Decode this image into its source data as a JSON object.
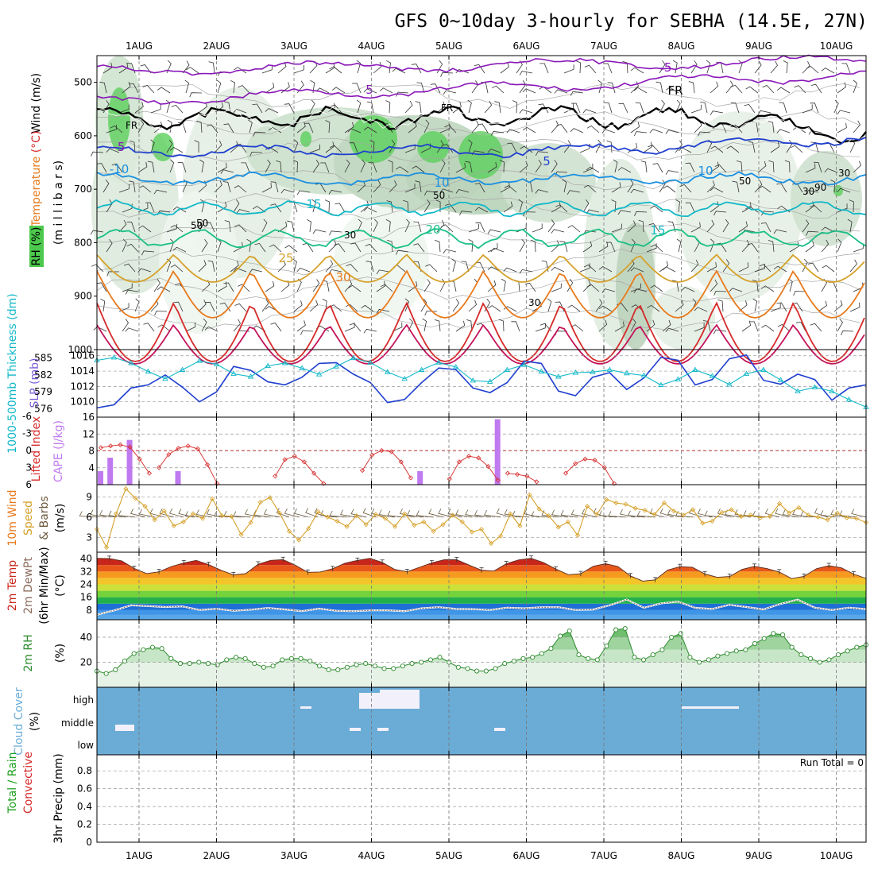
{
  "title": "GFS 0~10day 3-hourly for SEBHA (14.5E, 27N)",
  "dates": [
    "1AUG",
    "2AUG",
    "3AUG",
    "4AUG",
    "5AUG",
    "6AUG",
    "7AUG",
    "8AUG",
    "9AUG",
    "10AUG"
  ],
  "colors": {
    "purple": "#8a17b8",
    "blue": "#1f3fcf",
    "skyblue": "#1a8fe0",
    "teal": "#11b8c8",
    "green": "#1abf86",
    "gold": "#d6a12a",
    "orange": "#e87a1c",
    "red": "#d62a2a",
    "crimson": "#c4135a",
    "rhGreen": "#4cc94c",
    "cloudBlue": "#6aacd6"
  },
  "chart_data": [
    {
      "type": "contour",
      "panel": "upper-air",
      "ylabel": "milliibars",
      "ylabel_parts": {
        "wind": "Wind (m/s)",
        "temp": "Temperature (°C)",
        "rh": "RH (%)"
      },
      "ylabel_axis": "(m i l l i b a r s)",
      "yticks": [
        500,
        600,
        700,
        800,
        900,
        1000
      ],
      "ylim": [
        1000,
        450
      ],
      "contour_labels": [
        {
          "text": "5",
          "color": "purple"
        },
        {
          "text": "-5",
          "color": "purple"
        },
        {
          "text": "FR",
          "color": "black"
        },
        {
          "text": "-5",
          "color": "blue"
        },
        {
          "text": "-10",
          "color": "skyblue"
        },
        {
          "text": "10",
          "color": "skyblue"
        },
        {
          "text": "15",
          "color": "teal"
        },
        {
          "text": "20",
          "color": "green"
        },
        {
          "text": "25",
          "color": "gold"
        },
        {
          "text": "30",
          "color": "orange"
        }
      ],
      "rh_labels": [
        "50",
        "30",
        "50",
        "30",
        "50",
        "90",
        "30",
        "50",
        "30"
      ]
    },
    {
      "type": "line",
      "panel": "slp-thickness",
      "ylabel_left": "1000-500mb Thickness (dm)",
      "ylabel_right": "SLP (mb)",
      "yticks_left": [
        576,
        579,
        582,
        585
      ],
      "yticks_right": [
        1010,
        1012,
        1014,
        1016
      ],
      "series": [
        {
          "name": "SLP (mb)",
          "color": "blue",
          "values": [
            1009.2,
            1009.6,
            1011.8,
            1012.2,
            1013.5,
            1011.9,
            1010.0,
            1011.3,
            1014.6,
            1014.1,
            1012.6,
            1012.2,
            1013.2,
            1015.0,
            1015.1,
            1013.6,
            1012.5,
            1009.9,
            1010.3,
            1012.5,
            1014.4,
            1014.2,
            1011.8,
            1011.2,
            1012.5,
            1015.3,
            1015.0,
            1011.4,
            1010.8,
            1013.2,
            1013.8,
            1011.6,
            1013.1,
            1015.8,
            1015.4,
            1012.2,
            1012.9,
            1015.6,
            1016.1,
            1012.8,
            1012.3,
            1013.6,
            1012.9,
            1010.2,
            1011.8,
            1012.2
          ]
        },
        {
          "name": "1000-500mb Thickness (dm)",
          "color": "teal",
          "values": [
            584.6,
            585.1,
            584.1,
            582.6,
            581.3,
            582.9,
            584.5,
            583.9,
            582.2,
            581.7,
            583.6,
            584.1,
            583.2,
            582.1,
            583.5,
            585.0,
            584.2,
            582.5,
            581.3,
            582.9,
            584.2,
            583.4,
            581.0,
            580.8,
            582.9,
            583.8,
            582.6,
            581.7,
            582.4,
            582.5,
            582.9,
            582.3,
            581.9,
            580.2,
            581.2,
            582.9,
            581.8,
            580.3,
            582.2,
            582.9,
            581.1,
            579.1,
            579.8,
            579.1,
            577.6,
            576.3
          ]
        }
      ]
    },
    {
      "type": "bar",
      "panel": "instability",
      "ylabel_left": "Lifted Index",
      "ylabel_right": "CAPE (J/kg)",
      "yticks_left": [
        -6,
        -3,
        0,
        3,
        6
      ],
      "yticks_right": [
        4,
        8,
        12,
        16
      ],
      "cape_bars": [
        {
          "step": 0,
          "value": 3.2
        },
        {
          "step": 1,
          "value": 6.4
        },
        {
          "step": 3,
          "value": 10.6
        },
        {
          "step": 8,
          "value": 3.2
        },
        {
          "step": 33,
          "value": 3.2
        },
        {
          "step": 41,
          "value": 15.5
        }
      ],
      "lifted_index_segments": [
        [
          [
            0,
            -0.5
          ],
          [
            1,
            -0.8
          ],
          [
            2,
            -1
          ],
          [
            3,
            -0.6
          ],
          [
            4,
            1.5
          ],
          [
            5,
            4.0
          ]
        ],
        [
          [
            6,
            3.0
          ],
          [
            7,
            0.7
          ],
          [
            8,
            -0.4
          ],
          [
            9,
            -0.8
          ],
          [
            10,
            -0.3
          ],
          [
            11,
            2.5
          ],
          [
            12,
            5.8
          ]
        ],
        [
          [
            18,
            4.5
          ],
          [
            19,
            1.6
          ],
          [
            20,
            1.0
          ],
          [
            21,
            2.0
          ],
          [
            22,
            4.0
          ],
          [
            23,
            5.8
          ]
        ],
        [
          [
            27,
            3.5
          ],
          [
            28,
            0.8
          ],
          [
            29,
            0.0
          ],
          [
            30,
            0.2
          ],
          [
            31,
            2.0
          ],
          [
            32,
            4.8
          ]
        ],
        [
          [
            36,
            5.0
          ],
          [
            37,
            2.0
          ],
          [
            38,
            1.0
          ],
          [
            39,
            1.3
          ],
          [
            40,
            2.8
          ],
          [
            41,
            5.2
          ]
        ],
        [
          [
            42,
            4.0
          ],
          [
            43,
            4.2
          ],
          [
            44,
            4.5
          ],
          [
            45,
            5.5
          ]
        ],
        [
          [
            48,
            4.0
          ],
          [
            49,
            2.3
          ],
          [
            50,
            1.5
          ],
          [
            51,
            1.7
          ],
          [
            52,
            3.0
          ],
          [
            53,
            5.8
          ]
        ]
      ]
    },
    {
      "type": "line",
      "panel": "wind10m",
      "ylabel": "10m Wind Speed & Barbs (m/s)",
      "yticks": [
        3,
        6,
        9
      ],
      "series": [
        {
          "name": "10m Wind Speed",
          "color": "gold",
          "values": [
            4.2,
            1.5,
            6.5,
            10.2,
            8.8,
            7.6,
            5.6,
            6.9,
            4.7,
            5.3,
            6.5,
            5.8,
            8.7,
            6.2,
            6.1,
            3.4,
            5.2,
            8.2,
            8.9,
            6.6,
            3.9,
            2.6,
            4.3,
            6.8,
            6.0,
            5.4,
            4.6,
            6.2,
            4.9,
            6.4,
            5.8,
            4.6,
            6.5,
            4.8,
            5.3,
            3.9,
            4.9,
            6.3,
            5.3,
            3.8,
            4.2,
            2.1,
            3.2,
            6.5,
            4.7,
            9.3,
            7.2,
            6.2,
            4.5,
            5.3,
            3.3,
            7.6,
            6.4,
            8.6,
            8.1,
            7.9,
            7.3,
            7.0,
            6.4,
            8.1,
            6.9,
            6.3,
            7.1,
            5.1,
            5.4,
            6.7,
            7.1,
            6.1,
            6.3,
            5.9,
            6.1,
            8.0,
            6.6,
            7.4,
            6.3,
            6.0,
            5.6,
            6.6,
            5.9,
            5.8,
            5.2
          ]
        }
      ]
    },
    {
      "type": "area",
      "panel": "temp2m",
      "ylabel": "2m Temp 2m DewPt (6hr Min/Max) (°C)",
      "yticks": [
        8,
        16,
        24,
        32,
        40
      ],
      "series": [
        {
          "name": "2m Temp",
          "values": [
            40.2,
            40.1,
            38.6,
            33.9,
            30.7,
            31.8,
            35.1,
            37.3,
            38.9,
            36.3,
            32.8,
            29.9,
            30.7,
            36.6,
            38.9,
            39.4,
            35.9,
            31.5,
            31.7,
            33.7,
            37.2,
            38.9,
            40.2,
            37.7,
            33.3,
            31.9,
            34.6,
            37.4,
            39.3,
            39.3,
            36.0,
            32.8,
            32.3,
            36.8,
            39.2,
            40.2,
            37.6,
            33.5,
            30.0,
            30.6,
            35.2,
            36.9,
            35.1,
            29.3,
            26.0,
            26.8,
            32.9,
            35.0,
            34.6,
            30.5,
            28.4,
            28.9,
            33.3,
            35.2,
            33.8,
            31.7,
            27.6,
            29.0,
            33.7,
            35.6,
            34.3,
            30.4,
            27.7
          ]
        },
        {
          "name": "2m DewPt",
          "values": [
            5.1,
            7.8,
            11.0,
            10.5,
            9.9,
            10.3,
            8.1,
            8.8,
            7.6,
            8.3,
            9.3,
            8.4,
            7.4,
            8.9,
            7.6,
            7.3,
            7.9,
            7.9,
            7.3,
            9.1,
            9.8,
            8.7,
            8.6,
            8.1,
            9.5,
            9.1,
            9.7,
            9.8,
            8.1,
            8.3,
            11.0,
            14.6,
            9.4,
            12.2,
            13.3,
            9.4,
            8.7,
            11.3,
            9.9,
            8.4,
            11.9,
            14.5,
            9.5,
            8.1,
            9.5,
            8.6
          ]
        }
      ]
    },
    {
      "type": "area",
      "panel": "rh2m",
      "ylabel": "2m RH (%)",
      "yticks": [
        20,
        40
      ],
      "series": [
        {
          "name": "2m RH",
          "values": [
            13,
            11,
            14,
            21,
            27,
            30,
            32,
            31,
            23,
            19,
            19,
            20,
            19,
            18,
            22,
            24,
            23,
            19,
            16,
            17,
            22,
            23,
            23,
            21,
            17,
            14,
            14,
            16,
            18,
            19,
            17,
            15,
            15,
            17,
            19,
            20,
            22,
            24,
            20,
            16,
            15,
            13,
            13,
            15,
            19,
            21,
            23,
            24,
            27,
            31,
            41,
            45,
            26,
            23,
            22,
            33,
            46,
            47,
            24,
            22,
            26,
            30,
            40,
            43,
            24,
            20,
            22,
            25,
            27,
            29,
            30,
            35,
            39,
            43,
            42,
            32,
            26,
            23,
            20,
            22,
            26,
            29,
            32,
            34
          ]
        }
      ]
    },
    {
      "type": "heatmap",
      "panel": "cloud",
      "ylabel": "Cloud Cover (%)",
      "levels": [
        "high",
        "middle",
        "low"
      ]
    },
    {
      "type": "bar",
      "panel": "precip",
      "ylabel_left": "Total / Rain Convective",
      "ylabel_right": "3hr Precip (mm)",
      "yticks": [
        0,
        0.2,
        0.4,
        0.6,
        0.8
      ],
      "annotation": "Run Total = 0",
      "values": []
    }
  ]
}
